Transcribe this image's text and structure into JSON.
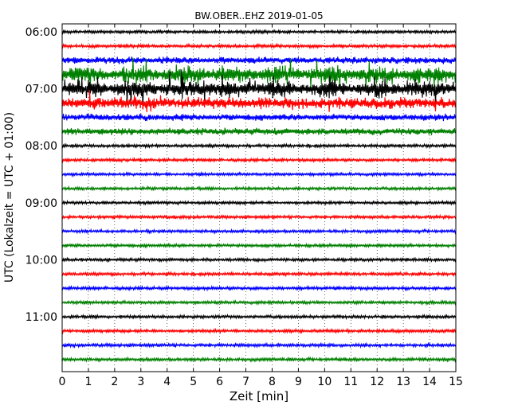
{
  "chart_data": {
    "type": "line",
    "title": "BW.OBER..EHZ 2019-01-05",
    "xlabel": "Zeit  [min]",
    "ylabel": "UTC (Lokalzeit = UTC + 01:00)",
    "xlim": [
      0,
      15
    ],
    "x_ticks": [
      0,
      1,
      2,
      3,
      4,
      5,
      6,
      7,
      8,
      9,
      10,
      11,
      12,
      13,
      14,
      15
    ],
    "x_tick_labels": [
      "0",
      "1",
      "2",
      "3",
      "4",
      "5",
      "6",
      "7",
      "8",
      "9",
      "10",
      "11",
      "12",
      "13",
      "14",
      "15"
    ],
    "y_tick_labels": [
      "06:00",
      "07:00",
      "08:00",
      "09:00",
      "10:00",
      "11:00"
    ],
    "grid": "vertical dotted",
    "series_colors": [
      "#000000",
      "#ff0000",
      "#0000ff",
      "#008000"
    ],
    "traces_per_hour": 4,
    "minutes_per_trace": 15,
    "rows": [
      {
        "start": "06:00",
        "color": "#000000",
        "level": 0.1
      },
      {
        "start": "06:15",
        "color": "#ff0000",
        "level": 0.15
      },
      {
        "start": "06:30",
        "color": "#0000ff",
        "level": 0.35
      },
      {
        "start": "06:45",
        "color": "#008000",
        "level": 0.9
      },
      {
        "start": "07:00",
        "color": "#000000",
        "level": 1.0
      },
      {
        "start": "07:15",
        "color": "#ff0000",
        "level": 0.55
      },
      {
        "start": "07:30",
        "color": "#0000ff",
        "level": 0.3
      },
      {
        "start": "07:45",
        "color": "#008000",
        "level": 0.25
      },
      {
        "start": "08:00",
        "color": "#000000",
        "level": 0.1
      },
      {
        "start": "08:15",
        "color": "#ff0000",
        "level": 0.1
      },
      {
        "start": "08:30",
        "color": "#0000ff",
        "level": 0.08
      },
      {
        "start": "08:45",
        "color": "#008000",
        "level": 0.08
      },
      {
        "start": "09:00",
        "color": "#000000",
        "level": 0.08
      },
      {
        "start": "09:15",
        "color": "#ff0000",
        "level": 0.08
      },
      {
        "start": "09:30",
        "color": "#0000ff",
        "level": 0.1
      },
      {
        "start": "09:45",
        "color": "#008000",
        "level": 0.12
      },
      {
        "start": "10:00",
        "color": "#000000",
        "level": 0.12
      },
      {
        "start": "10:15",
        "color": "#ff0000",
        "level": 0.12
      },
      {
        "start": "10:30",
        "color": "#0000ff",
        "level": 0.15
      },
      {
        "start": "10:45",
        "color": "#008000",
        "level": 0.12
      },
      {
        "start": "11:00",
        "color": "#000000",
        "level": 0.12
      },
      {
        "start": "11:15",
        "color": "#ff0000",
        "level": 0.12
      },
      {
        "start": "11:30",
        "color": "#0000ff",
        "level": 0.15
      },
      {
        "start": "11:45",
        "color": "#008000",
        "level": 0.15
      }
    ]
  }
}
